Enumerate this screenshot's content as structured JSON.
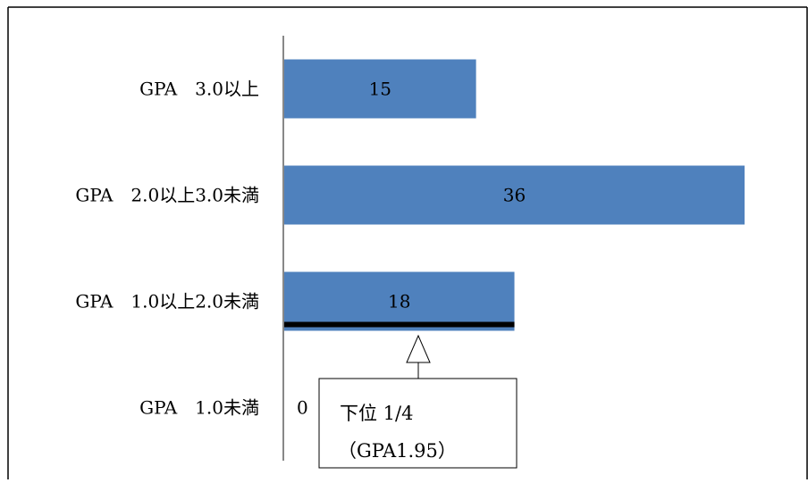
{
  "chart_data": {
    "type": "bar",
    "orientation": "horizontal",
    "categories": [
      "GPA　3.0以上",
      "GPA　2.0以上3.0未満",
      "GPA　1.0以上2.0未満",
      "GPA　1.0未満"
    ],
    "values": [
      15,
      36,
      18,
      0
    ],
    "data_labels": [
      "15",
      "36",
      "18",
      "0"
    ],
    "title": "",
    "xlabel": "",
    "ylabel": "",
    "xlim": [
      0,
      39
    ],
    "grid": false,
    "legend": "none",
    "bar_color": "#4f81bd",
    "marker_color": "#000000",
    "annotation": {
      "line1": "下位 1/4",
      "line2": "（GPA1.95）",
      "target_category": "GPA　1.0以上2.0未満"
    }
  }
}
